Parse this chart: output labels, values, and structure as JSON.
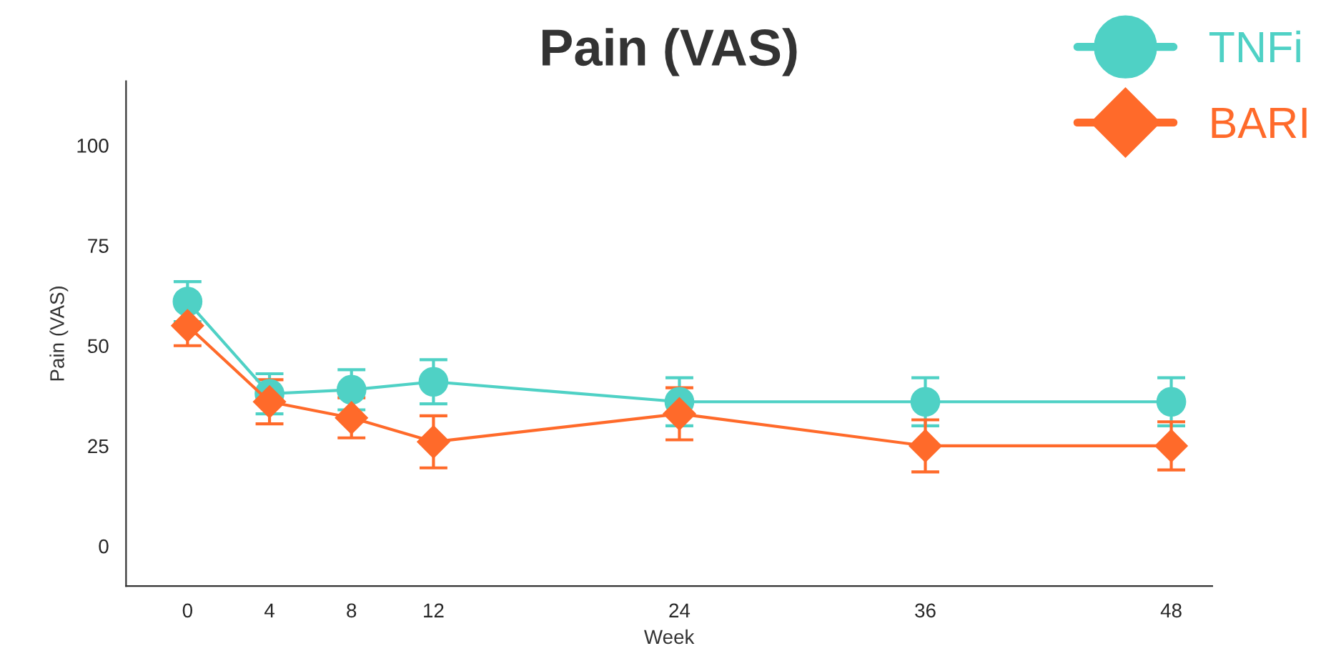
{
  "chart_data": {
    "type": "line",
    "title": "Pain (VAS)",
    "xlabel": "Week",
    "ylabel": "Pain (VAS)",
    "x": [
      0,
      4,
      8,
      12,
      24,
      36,
      48
    ],
    "xlim": [
      -3,
      50
    ],
    "xticks": [
      0,
      4,
      8,
      12,
      24,
      36,
      48
    ],
    "ylim": [
      -10,
      116
    ],
    "yticks": [
      0,
      25,
      50,
      75,
      100
    ],
    "grid": false,
    "legend": "top right",
    "series": [
      {
        "name": "TNFi",
        "color": "#4fd1c5",
        "marker": "circle",
        "values": [
          61,
          38,
          39,
          41,
          36,
          36,
          36
        ],
        "errors": [
          5,
          5,
          5,
          5.5,
          6,
          6,
          6
        ]
      },
      {
        "name": "BARI",
        "color": "#ff6a2a",
        "marker": "diamond",
        "values": [
          55,
          36,
          32,
          26,
          33,
          25,
          25
        ],
        "errors": [
          5,
          5.5,
          5,
          6.5,
          6.5,
          6.5,
          6
        ]
      }
    ]
  }
}
